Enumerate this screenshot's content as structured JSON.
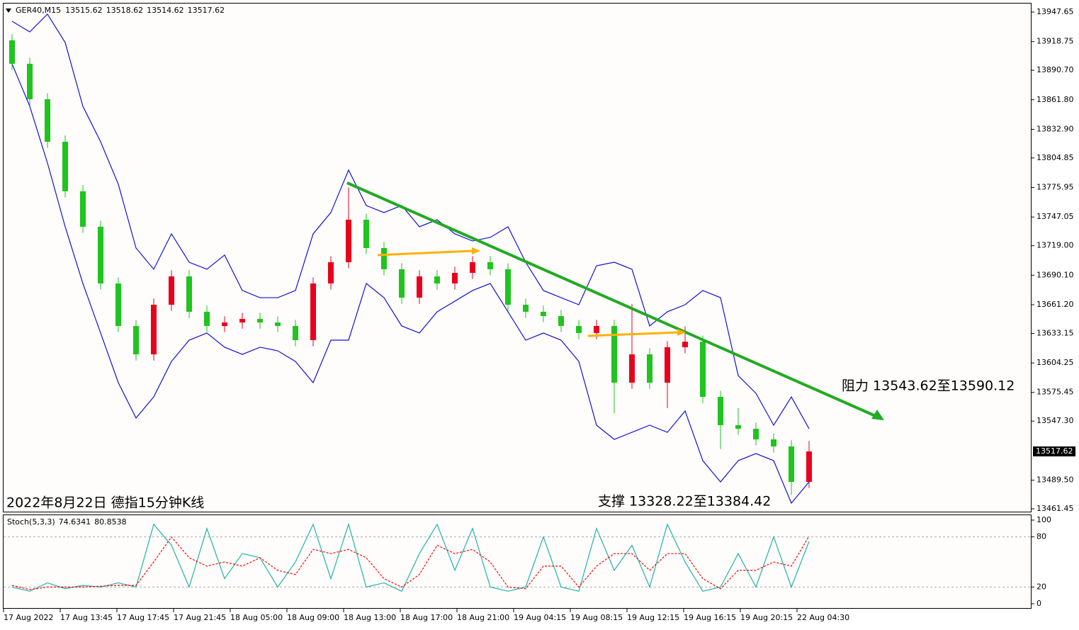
{
  "chart_data": [
    {
      "type": "candlestick",
      "symbol": "GER40,M15",
      "header_ohlc": [
        13515.62,
        13518.62,
        13514.62,
        13517.62
      ],
      "up_color": "#e8001c",
      "down_color": "#1fc41f",
      "band_color": "#1010e0",
      "open": [
        13920.0,
        13897.0,
        13862.3,
        13820.7,
        13772.2,
        13737.5,
        13682.0,
        13640.4,
        13612.6,
        13661.2,
        13688.9,
        13654.3,
        13640.4,
        13643.8,
        13647.3,
        13643.8,
        13640.4,
        13626.5,
        13682.0,
        13702.8,
        13744.4,
        13716.7,
        13695.9,
        13668.1,
        13688.9,
        13682.0,
        13692.4,
        13702.8,
        13695.9,
        13661.2,
        13654.3,
        13650.1,
        13640.4,
        13633.5,
        13640.4,
        13584.9,
        13612.6,
        13584.9,
        13619.6,
        13625.0,
        13571.0,
        13543.3,
        13539.8,
        13529.4,
        13522.5,
        13487.8
      ],
      "high": [
        13926.0,
        13903.0,
        13868.3,
        13826.7,
        13778.2,
        13743.5,
        13688.0,
        13646.4,
        13667.2,
        13694.9,
        13694.9,
        13660.3,
        13649.8,
        13653.3,
        13653.3,
        13649.8,
        13646.4,
        13688.0,
        13708.8,
        13776.0,
        13750.4,
        13722.7,
        13701.9,
        13694.9,
        13694.9,
        13698.4,
        13708.8,
        13708.8,
        13701.9,
        13667.2,
        13660.3,
        13656.1,
        13646.4,
        13646.4,
        13646.4,
        13662.0,
        13618.6,
        13625.6,
        13640.0,
        13631.0,
        13577.0,
        13560.0,
        13545.8,
        13535.4,
        13528.5,
        13528.0
      ],
      "low": [
        13891.0,
        13856.3,
        13814.7,
        13766.2,
        13731.5,
        13676.0,
        13634.4,
        13606.6,
        13606.6,
        13655.2,
        13648.3,
        13634.4,
        13634.4,
        13637.8,
        13637.8,
        13634.4,
        13620.5,
        13620.5,
        13676.0,
        13696.8,
        13710.7,
        13689.9,
        13662.1,
        13662.1,
        13676.0,
        13676.0,
        13686.4,
        13689.9,
        13655.2,
        13648.3,
        13644.1,
        13634.4,
        13627.5,
        13627.5,
        13555.0,
        13578.9,
        13578.9,
        13560.0,
        13613.6,
        13565.0,
        13520.0,
        13533.8,
        13523.4,
        13516.5,
        13475.0,
        13481.8
      ],
      "close": [
        13897.0,
        13862.3,
        13820.7,
        13772.2,
        13737.5,
        13682.0,
        13640.4,
        13612.6,
        13661.2,
        13688.9,
        13654.3,
        13640.4,
        13643.8,
        13647.3,
        13643.8,
        13640.4,
        13626.5,
        13682.0,
        13702.8,
        13744.4,
        13716.7,
        13695.9,
        13668.1,
        13688.9,
        13682.0,
        13692.4,
        13702.8,
        13695.9,
        13661.2,
        13654.3,
        13650.1,
        13640.4,
        13633.5,
        13640.4,
        13584.9,
        13612.6,
        13584.9,
        13619.6,
        13625.0,
        13571.0,
        13543.3,
        13539.8,
        13529.4,
        13522.5,
        13487.8,
        13517.62
      ],
      "bands": [
        {
          "values": [
            13938.6,
            13928.2,
            13945.6,
            13917.8,
            13855.4,
            13820.7,
            13779.1,
            13716.7,
            13695.9,
            13730.6,
            13702.8,
            13695.9,
            13709.8,
            13675.1,
            13668.1,
            13668.1,
            13675.1,
            13730.6,
            13751.4,
            13793.0,
            13758.3,
            13751.4,
            13758.3,
            13737.5,
            13744.4,
            13730.6,
            13723.6,
            13727.1,
            13737.5,
            13702.8,
            13675.1,
            13668.1,
            13661.2,
            13699.3,
            13702.8,
            13695.9,
            13640.4,
            13654.3,
            13661.2,
            13675.1,
            13668.1,
            13591.8,
            13574.5,
            13543.3,
            13571.0,
            13539.8
          ]
        },
        {
          "values": [
            13897.0,
            13855.4,
            13799.9,
            13737.5,
            13682.0,
            13633.5,
            13584.9,
            13550.3,
            13571.0,
            13605.7,
            13626.5,
            13633.5,
            13619.6,
            13612.6,
            13619.6,
            13616.1,
            13605.7,
            13584.9,
            13626.5,
            13626.5,
            13682.0,
            13668.1,
            13640.4,
            13633.5,
            13654.3,
            13664.7,
            13675.1,
            13682.0,
            13654.3,
            13626.5,
            13633.5,
            13626.5,
            13605.7,
            13543.3,
            13529.4,
            13536.3,
            13543.3,
            13536.3,
            13557.2,
            13508.6,
            13487.8,
            13508.6,
            13515.5,
            13508.6,
            13467.0,
            13487.8
          ]
        }
      ],
      "x_labels": [
        "17 Aug 2022",
        "17 Aug 13:45",
        "17 Aug 17:45",
        "17 Aug 21:45",
        "18 Aug 05:00",
        "18 Aug 09:00",
        "18 Aug 13:00",
        "18 Aug 17:00",
        "18 Aug 21:00",
        "19 Aug 04:15",
        "19 Aug 08:15",
        "19 Aug 12:15",
        "19 Aug 16:15",
        "19 Aug 20:15",
        "22 Aug 04:30"
      ],
      "ylim": [
        13458.67,
        13955.97
      ],
      "yticks": [
        13947.65,
        13918.75,
        {
          "value": 13890.7,
          "label": "13890.70"
        },
        {
          "value": 13861.8,
          "label": "13861.80"
        },
        {
          "value": 13832.9,
          "label": "13832.90"
        },
        13804.85,
        13775.95,
        13747.05,
        {
          "value": 13719.0,
          "label": "13719.00"
        },
        {
          "value": 13690.1,
          "label": "13690.10"
        },
        {
          "value": 13661.2,
          "label": "13661.20"
        },
        13633.15,
        13604.25,
        13575.45,
        {
          "value": 13547.3,
          "label": "13547.30"
        },
        {
          "value": 13489.5,
          "label": "13489.50"
        },
        13461.45
      ],
      "annotations": [
        "阻力 13543.62至13590.12",
        "支撑 13328.22至13384.42",
        "2022年8月22日 德指15分钟K线"
      ]
    },
    {
      "type": "line",
      "title": "Stoch(5,3,3)",
      "series": [
        {
          "color": "#20b2aa",
          "dashed": false,
          "values": [
            20,
            15,
            25,
            18,
            22,
            20,
            25,
            20,
            95,
            70,
            20,
            90,
            30,
            60,
            55,
            20,
            50,
            95,
            30,
            95,
            20,
            25,
            15,
            60,
            95,
            40,
            90,
            20,
            15,
            20,
            80,
            20,
            15,
            90,
            40,
            70,
            20,
            95,
            50,
            15,
            20,
            60,
            20,
            80,
            20,
            74.6341
          ]
        },
        {
          "color": "#ff0000",
          "dashed": true,
          "values": [
            22,
            17,
            20,
            20,
            20,
            21,
            22,
            22,
            50,
            80,
            55,
            45,
            50,
            45,
            55,
            40,
            35,
            65,
            60,
            65,
            55,
            30,
            20,
            35,
            70,
            60,
            65,
            50,
            20,
            18,
            45,
            45,
            20,
            45,
            60,
            60,
            40,
            60,
            60,
            30,
            18,
            40,
            40,
            50,
            45,
            80.8538
          ]
        }
      ],
      "ylim": [
        -5.1,
        105.9
      ],
      "yticks": [
        0,
        20,
        80,
        100
      ],
      "levels": [
        20,
        80
      ]
    }
  ]
}
